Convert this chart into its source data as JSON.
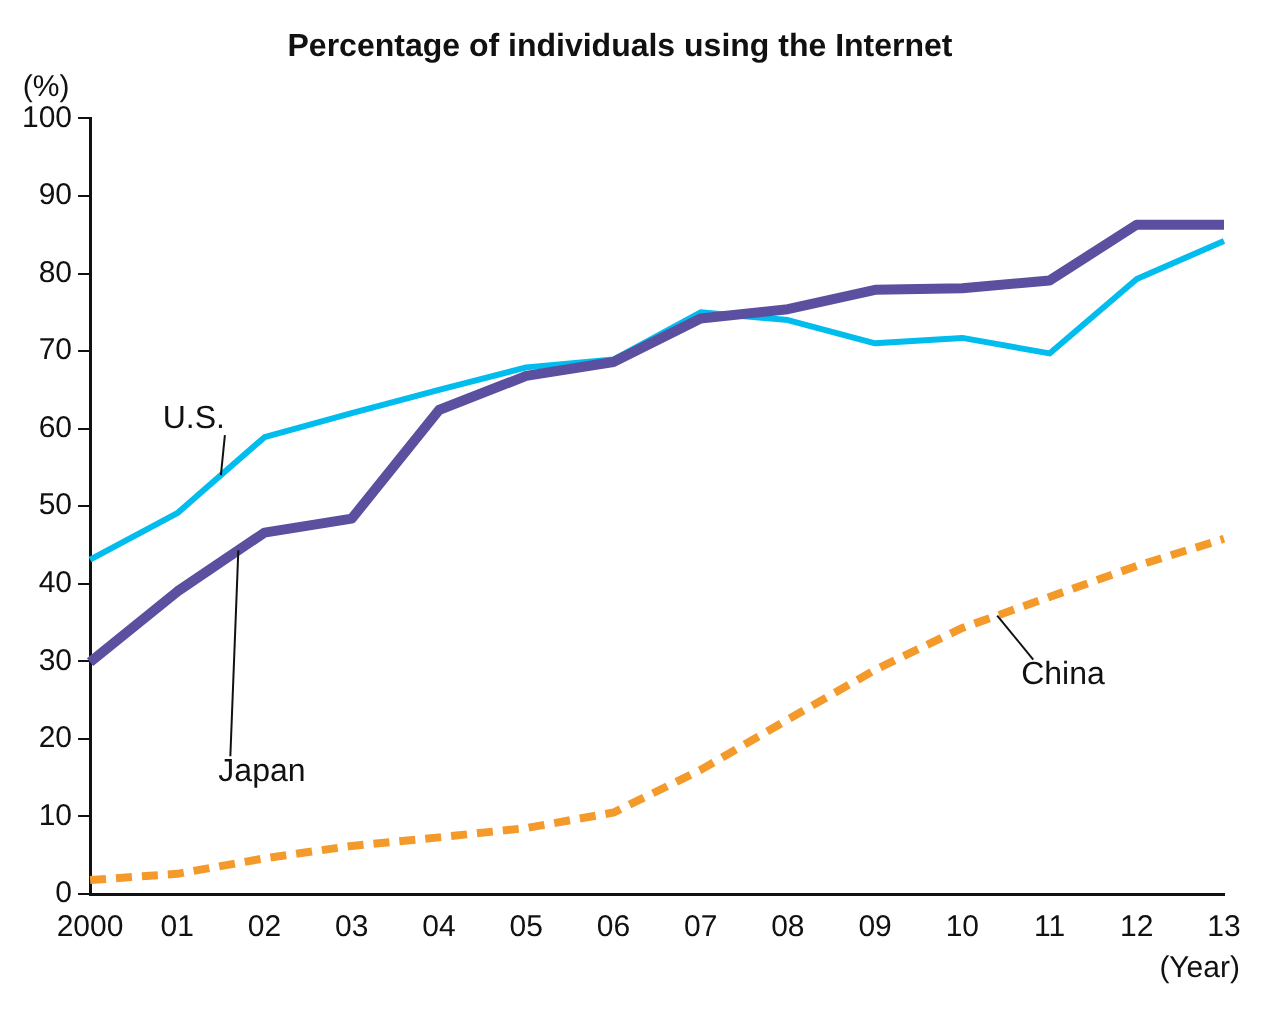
{
  "chart_data": {
    "type": "line",
    "title": "Percentage of individuals using the Internet",
    "xlabel": "(Year)",
    "ylabel": "(%)",
    "categories": [
      "2000",
      "01",
      "02",
      "03",
      "04",
      "05",
      "06",
      "07",
      "08",
      "09",
      "10",
      "11",
      "12",
      "13"
    ],
    "ylim": [
      0,
      100
    ],
    "yticks": [
      0,
      10,
      20,
      30,
      40,
      50,
      60,
      70,
      80,
      90,
      100
    ],
    "grid": false,
    "legend": false,
    "marker": "none",
    "series": [
      {
        "name": "U.S.",
        "color": "#00bdee",
        "line_style": "solid",
        "values": [
          43.1,
          49.1,
          58.9,
          62.0,
          65.0,
          67.9,
          68.9,
          75.0,
          74.0,
          71.0,
          71.7,
          69.7,
          79.3,
          84.2
        ]
      },
      {
        "name": "Japan",
        "color": "#5b4fa0",
        "line_style": "solid",
        "values": [
          29.9,
          39.0,
          46.6,
          48.4,
          62.4,
          66.8,
          68.6,
          74.2,
          75.4,
          77.9,
          78.1,
          79.1,
          86.3,
          86.3
        ]
      },
      {
        "name": "China",
        "color": "#f39a2a",
        "line_style": "dashed",
        "values": [
          1.8,
          2.6,
          4.6,
          6.2,
          7.3,
          8.5,
          10.5,
          16.0,
          22.5,
          28.9,
          34.3,
          38.3,
          42.3,
          45.8
        ]
      }
    ]
  }
}
